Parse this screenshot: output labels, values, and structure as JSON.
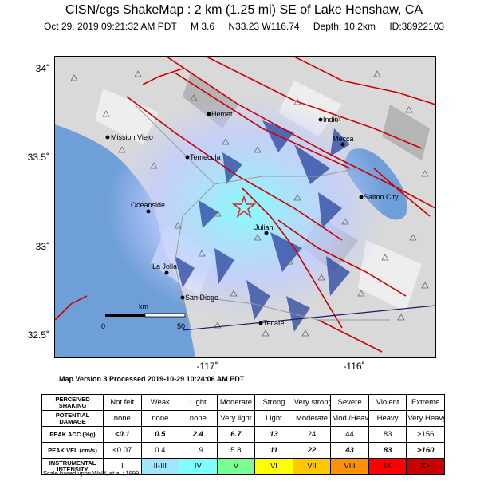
{
  "header": {
    "title": "CISN/cgs ShakeMap : 2 km (1.25 mi) SE of Lake Henshaw, CA",
    "date": "Oct 29, 2019 09:21:32 AM PDT",
    "magnitude": "M 3.6",
    "location": "N33.23 W116.74",
    "depth": "Depth: 10.2km",
    "event_id": "ID:38922103"
  },
  "map": {
    "lat_ticks": [
      "34˚",
      "33.5˚",
      "33˚",
      "32.5˚"
    ],
    "lon_ticks": [
      "-117˚",
      "-116˚"
    ],
    "scale_bar": {
      "unit": "km",
      "start": "0",
      "end": "50"
    },
    "cities": [
      {
        "name": "Hemet"
      },
      {
        "name": "Indio"
      },
      {
        "name": "Mission Viejo"
      },
      {
        "name": "Mecca"
      },
      {
        "name": "Temecula"
      },
      {
        "name": "Salton City"
      },
      {
        "name": "Oceanside"
      },
      {
        "name": "Julian"
      },
      {
        "name": "La Jolla"
      },
      {
        "name": "San Diego"
      },
      {
        "name": "Tecate"
      }
    ],
    "colors": {
      "ocean": "#6f9fd8",
      "land": "#d8d8d8",
      "fault": "#cc0000",
      "epicenter": "#e0202a",
      "border": "#1a1a6e"
    }
  },
  "version_line": "Map Version 3 Processed 2019-10-29 10:24:06 AM PDT",
  "legend": {
    "row_headers": {
      "shaking": "PERCEIVED SHAKING",
      "damage": "POTENTIAL DAMAGE",
      "acc": "PEAK ACC.(%g)",
      "vel": "PEAK VEL.(cm/s)",
      "intensity": "INSTRUMENTAL INTENSITY"
    },
    "shaking": [
      "Not felt",
      "Weak",
      "Light",
      "Moderate",
      "Strong",
      "Very strong",
      "Severe",
      "Violent",
      "Extreme"
    ],
    "damage": [
      "none",
      "none",
      "none",
      "Very light",
      "Light",
      "Moderate",
      "Mod./Heavy",
      "Heavy",
      "Very Heavy"
    ],
    "acc": [
      "<0.1",
      "0.5",
      "2.4",
      "6.7",
      "13",
      "24",
      "44",
      "83",
      ">156"
    ],
    "vel": [
      "<0.07",
      "0.4",
      "1.9",
      "5.8",
      "11",
      "22",
      "43",
      "83",
      ">160"
    ],
    "intensity": [
      "I",
      "II-III",
      "IV",
      "V",
      "VI",
      "VII",
      "VIII",
      "IX",
      "X+"
    ],
    "intensity_colors": [
      "#ffffff",
      "#bfccff",
      "#a0e6ff",
      "#80ffff",
      "#7aff93",
      "#ffff00",
      "#ffc800",
      "#ff9100",
      "#ff0000",
      "#c80000"
    ]
  },
  "scale_note": "Scale based upon Wald, et al.; 1999"
}
